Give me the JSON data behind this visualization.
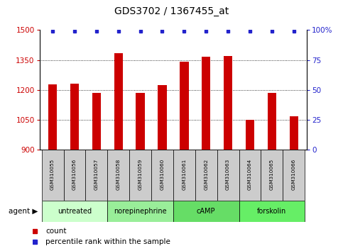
{
  "title": "GDS3702 / 1367455_at",
  "samples": [
    "GSM310055",
    "GSM310056",
    "GSM310057",
    "GSM310058",
    "GSM310059",
    "GSM310060",
    "GSM310061",
    "GSM310062",
    "GSM310063",
    "GSM310064",
    "GSM310065",
    "GSM310066"
  ],
  "bar_values": [
    1228,
    1230,
    1185,
    1385,
    1185,
    1225,
    1340,
    1365,
    1370,
    1050,
    1185,
    1065
  ],
  "percentile_values": [
    99,
    99,
    99,
    99,
    99,
    99,
    99,
    99,
    99,
    99,
    99,
    99
  ],
  "bar_color": "#cc0000",
  "percentile_color": "#2222cc",
  "ylim_left": [
    900,
    1500
  ],
  "ylim_right": [
    0,
    100
  ],
  "yticks_left": [
    900,
    1050,
    1200,
    1350,
    1500
  ],
  "yticks_right": [
    0,
    25,
    50,
    75,
    100
  ],
  "ytick_labels_right": [
    "0",
    "25",
    "50",
    "75",
    "100%"
  ],
  "agents": [
    {
      "label": "untreated",
      "start": 0,
      "end": 3,
      "color": "#ccffcc"
    },
    {
      "label": "norepinephrine",
      "start": 3,
      "end": 6,
      "color": "#99ee99"
    },
    {
      "label": "cAMP",
      "start": 6,
      "end": 9,
      "color": "#66dd66"
    },
    {
      "label": "forskolin",
      "start": 9,
      "end": 12,
      "color": "#66ee66"
    }
  ],
  "agent_label": "agent",
  "legend_count_label": "count",
  "legend_percentile_label": "percentile rank within the sample",
  "bar_width": 0.4,
  "tick_label_color_left": "#cc0000",
  "tick_label_color_right": "#2222cc",
  "sample_box_color": "#cccccc",
  "title_fontsize": 10
}
